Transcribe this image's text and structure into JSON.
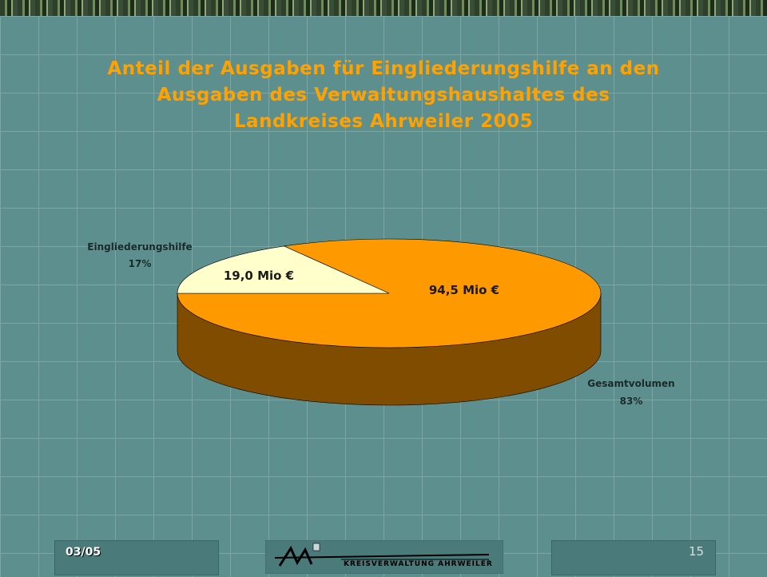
{
  "slide": {
    "title_lines": [
      "Anteil der Ausgaben für Eingliederungshilfe an den",
      "Ausgaben des Verwaltungshaushaltes des",
      "Landkreises Ahrweiler 2005"
    ],
    "date": "03/05",
    "page_number": "15",
    "logo_text": "KREISVERWALTUNG AHRWEILER",
    "logo_mark": "AW"
  },
  "colors": {
    "title": "#ffa200",
    "slice_large_top": "#ff9900",
    "slice_large_side": "#7f4c00",
    "slice_small_top": "#ffffcc",
    "label_text": "#1a2a2a"
  },
  "chart_data": {
    "type": "pie",
    "style": "3d",
    "slices": [
      {
        "name": "Eingliederungshilfe",
        "percent_label": "17%",
        "value_label": "19,0 Mio €",
        "value": 19.0
      },
      {
        "name": "Gesamtvolumen",
        "percent_label": "83%",
        "value_label": "94,5 Mio €",
        "value": 94.5
      }
    ]
  }
}
